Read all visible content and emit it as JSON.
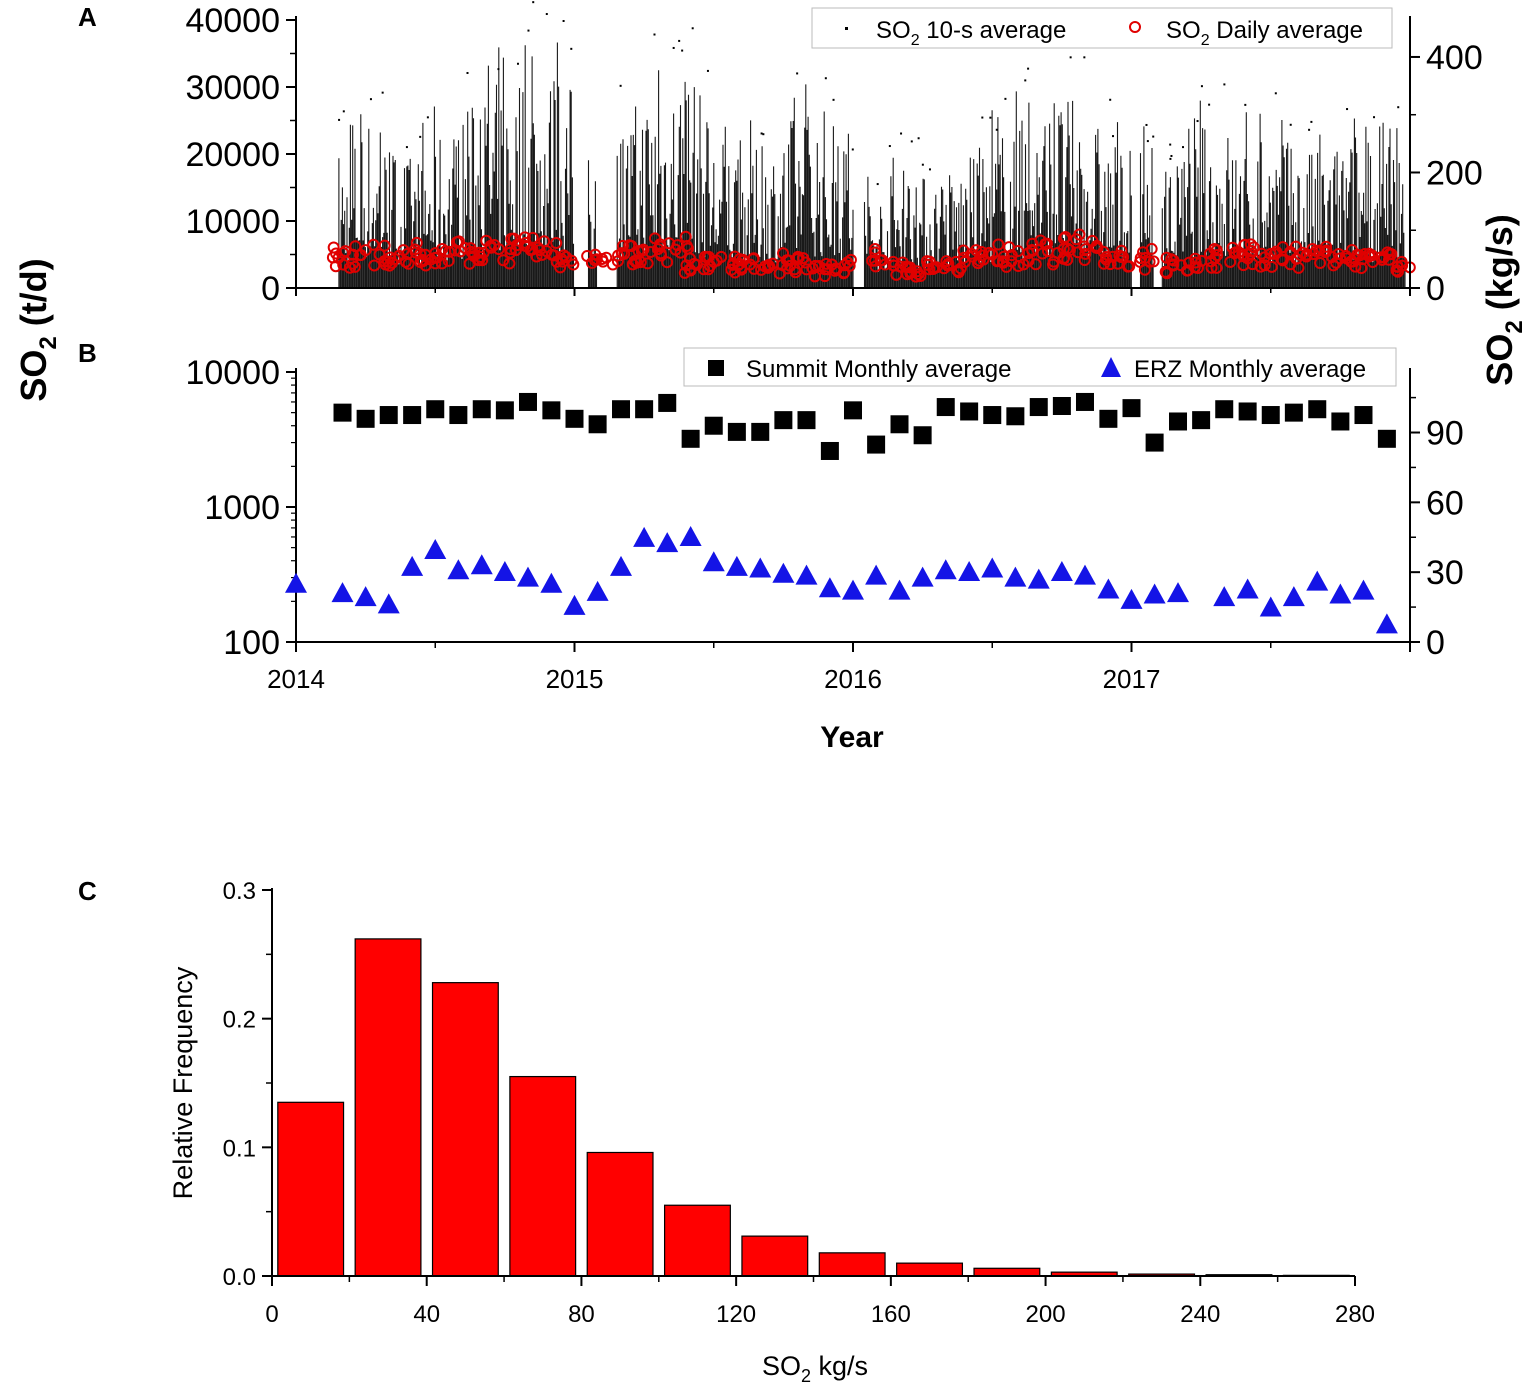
{
  "colors": {
    "summit": "#000000",
    "erz": "#1414e6",
    "daily": "#e00000",
    "hist": "#ff0000",
    "raw": "#000000"
  },
  "panel_labels": {
    "a": "A",
    "b": "B",
    "c": "C"
  },
  "shared_left_axis": {
    "main": "SO",
    "sub": "2",
    "unit": " (t/d)"
  },
  "shared_right_axis": {
    "main": "SO",
    "sub": "2",
    "unit": " (kg/s)"
  },
  "chart_data": [
    {
      "type": "scatter",
      "panel": "A",
      "xlim": [
        2014,
        2018
      ],
      "ylim_left": [
        0,
        40000
      ],
      "ylim_right": [
        0,
        464
      ],
      "yticks_left": [
        "0",
        "10000",
        "20000",
        "30000",
        "40000"
      ],
      "yticks_right": [
        "0",
        "200",
        "400"
      ],
      "legend": [
        {
          "main": "SO",
          "sub": "2",
          "rest": " 10-s average"
        },
        {
          "main": "SO",
          "sub": "2",
          "rest": " Daily average"
        }
      ],
      "legend_position": "top-right",
      "data_gaps_years": [
        [
          2014.0,
          2014.15
        ],
        [
          2015.0,
          2015.05
        ],
        [
          2015.08,
          2015.15
        ],
        [
          2016.0,
          2016.04
        ],
        [
          2017.0,
          2017.03
        ],
        [
          2017.08,
          2017.11
        ]
      ],
      "series": [
        {
          "name": "SO2 Daily average",
          "x": [
            2014.17,
            2014.23,
            2014.3,
            2014.37,
            2014.43,
            2014.5,
            2014.57,
            2014.63,
            2014.7,
            2014.77,
            2014.83,
            2014.9,
            2014.97,
            2015.08,
            2015.17,
            2015.23,
            2015.3,
            2015.37,
            2015.43,
            2015.5,
            2015.57,
            2015.63,
            2015.7,
            2015.77,
            2015.83,
            2015.9,
            2015.97,
            2016.08,
            2016.17,
            2016.23,
            2016.3,
            2016.37,
            2016.43,
            2016.5,
            2016.57,
            2016.63,
            2016.7,
            2016.77,
            2016.83,
            2016.9,
            2016.97,
            2017.05,
            2017.15,
            2017.23,
            2017.3,
            2017.37,
            2017.43,
            2017.5,
            2017.57,
            2017.63,
            2017.7,
            2017.77,
            2017.83,
            2017.9,
            2017.97
          ],
          "y": [
            5200,
            4900,
            5000,
            4800,
            5300,
            5200,
            5600,
            5400,
            6000,
            5800,
            6200,
            5500,
            4600,
            4300,
            5200,
            5500,
            5800,
            6400,
            3600,
            3900,
            3700,
            3500,
            3200,
            4100,
            3800,
            2800,
            3400,
            5300,
            3200,
            2500,
            3100,
            3900,
            4700,
            5000,
            4900,
            5200,
            5500,
            5900,
            6200,
            5400,
            4600,
            4500,
            3500,
            3800,
            4500,
            5200,
            5500,
            5100,
            5400,
            5000,
            5600,
            4800,
            4300,
            4200,
            3900
          ]
        },
        {
          "name": "SO2 10-s average",
          "x": [
            2014.17,
            2014.25,
            2014.33,
            2014.42,
            2014.5,
            2014.58,
            2014.67,
            2014.75,
            2014.83,
            2014.92,
            2015.17,
            2015.25,
            2015.33,
            2015.42,
            2015.5,
            2015.58,
            2015.67,
            2015.75,
            2015.83,
            2015.92,
            2016.08,
            2016.17,
            2016.25,
            2016.33,
            2016.42,
            2016.5,
            2016.58,
            2016.67,
            2016.75,
            2016.83,
            2016.92,
            2017.17,
            2017.25,
            2017.33,
            2017.42,
            2017.5,
            2017.58,
            2017.67,
            2017.75,
            2017.83,
            2017.92
          ],
          "y": [
            22000,
            30000,
            25000,
            22000,
            26000,
            28000,
            33000,
            35000,
            38000,
            37000,
            27000,
            34000,
            36000,
            37000,
            26000,
            25000,
            23000,
            27000,
            32000,
            30000,
            15000,
            22000,
            19000,
            20000,
            22000,
            26000,
            28000,
            30000,
            32000,
            31000,
            25000,
            21000,
            27000,
            28000,
            25000,
            26000,
            24000,
            23000,
            25000,
            27000,
            24000
          ]
        }
      ]
    },
    {
      "type": "scatter",
      "panel": "B",
      "yscale": "log",
      "xlim": [
        2014,
        2018
      ],
      "ylim_left": [
        100,
        10000
      ],
      "ylim_right": [
        0,
        116
      ],
      "yticks_left": [
        "100",
        "1000",
        "10000"
      ],
      "yticks_right": [
        "0",
        "30",
        "60",
        "90"
      ],
      "xticks": [
        "2014",
        "2015",
        "2016",
        "2017"
      ],
      "xlabel": "Year",
      "legend": [
        "Summit Monthly average",
        "ERZ Monthly average"
      ],
      "legend_position": "top-right",
      "series": [
        {
          "name": "Summit Monthly average",
          "x": [
            2014.167,
            2014.25,
            2014.333,
            2014.417,
            2014.5,
            2014.583,
            2014.667,
            2014.75,
            2014.833,
            2014.917,
            2015.0,
            2015.083,
            2015.167,
            2015.25,
            2015.333,
            2015.417,
            2015.5,
            2015.583,
            2015.667,
            2015.75,
            2015.833,
            2015.917,
            2016.0,
            2016.083,
            2016.167,
            2016.25,
            2016.333,
            2016.417,
            2016.5,
            2016.583,
            2016.667,
            2016.75,
            2016.833,
            2016.917,
            2017.0,
            2017.083,
            2017.167,
            2017.25,
            2017.333,
            2017.417,
            2017.5,
            2017.583,
            2017.667,
            2017.75,
            2017.833,
            2017.917
          ],
          "y": [
            5000,
            4500,
            4800,
            4800,
            5300,
            4800,
            5300,
            5200,
            6000,
            5200,
            4500,
            4100,
            5300,
            5300,
            5900,
            3200,
            4000,
            3600,
            3600,
            4400,
            4400,
            2600,
            5200,
            2900,
            4100,
            3400,
            5500,
            5100,
            4800,
            4700,
            5500,
            5600,
            6000,
            4500,
            5400,
            3000,
            4300,
            4400,
            5300,
            5100,
            4800,
            5000,
            5300,
            4300,
            4800,
            3200
          ]
        },
        {
          "name": "ERZ Monthly average",
          "x": [
            2014.0,
            2014.167,
            2014.25,
            2014.333,
            2014.417,
            2014.5,
            2014.583,
            2014.667,
            2014.75,
            2014.833,
            2014.917,
            2015.0,
            2015.083,
            2015.167,
            2015.25,
            2015.333,
            2015.417,
            2015.5,
            2015.583,
            2015.667,
            2015.75,
            2015.833,
            2015.917,
            2016.0,
            2016.083,
            2016.167,
            2016.25,
            2016.333,
            2016.417,
            2016.5,
            2016.583,
            2016.667,
            2016.75,
            2016.833,
            2016.917,
            2017.0,
            2017.083,
            2017.167,
            2017.333,
            2017.417,
            2017.5,
            2017.583,
            2017.667,
            2017.75,
            2017.833,
            2017.917
          ],
          "y": [
            270,
            230,
            215,
            190,
            360,
            480,
            340,
            370,
            330,
            300,
            270,
            185,
            235,
            360,
            590,
            540,
            600,
            390,
            360,
            350,
            320,
            310,
            250,
            240,
            310,
            240,
            300,
            340,
            330,
            350,
            300,
            290,
            330,
            310,
            245,
            205,
            225,
            230,
            215,
            245,
            180,
            215,
            280,
            225,
            240,
            135
          ]
        }
      ]
    },
    {
      "type": "bar",
      "panel": "C",
      "xlabel": {
        "main": "SO",
        "sub": "2",
        "rest": " kg/s"
      },
      "ylabel": "Relative Frequency",
      "xlim": [
        0,
        280
      ],
      "ylim": [
        0,
        0.3
      ],
      "xticks": [
        "0",
        "40",
        "80",
        "120",
        "160",
        "200",
        "240",
        "280"
      ],
      "yticks": [
        "0.0",
        "0.1",
        "0.2",
        "0.3"
      ],
      "bin_width": 20,
      "bins": [
        0,
        20,
        40,
        60,
        80,
        100,
        120,
        140,
        160,
        180,
        200,
        220,
        240,
        260
      ],
      "values": [
        0.135,
        0.262,
        0.228,
        0.155,
        0.096,
        0.055,
        0.031,
        0.018,
        0.01,
        0.006,
        0.003,
        0.0015,
        0.001,
        0.0005
      ]
    }
  ]
}
